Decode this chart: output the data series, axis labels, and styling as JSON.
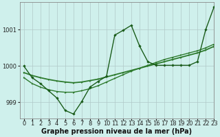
{
  "background_color": "#cff0ec",
  "grid_color": "#b0c8c8",
  "line_color_dark": "#1a5c1a",
  "line_color_mid": "#2d7a2d",
  "xlabel": "Graphe pression niveau de la mer (hPa)",
  "xlim": [
    -0.5,
    23
  ],
  "ylim": [
    998.55,
    1001.75
  ],
  "yticks": [
    999,
    1000,
    1001
  ],
  "xticks": [
    0,
    1,
    2,
    3,
    4,
    5,
    6,
    7,
    8,
    9,
    10,
    11,
    12,
    13,
    14,
    15,
    16,
    17,
    18,
    19,
    20,
    21,
    22,
    23
  ],
  "series_main_x": [
    0,
    1,
    2,
    3,
    4,
    5,
    6,
    7,
    8,
    9,
    10,
    11,
    12,
    13,
    14,
    15,
    16,
    17,
    18,
    19,
    20,
    21,
    22,
    23
  ],
  "series_main_y": [
    1000.0,
    999.68,
    999.52,
    999.32,
    999.12,
    998.78,
    998.68,
    999.02,
    999.42,
    999.58,
    999.72,
    1000.85,
    1000.98,
    1001.12,
    1000.55,
    1000.12,
    1000.02,
    1000.02,
    1000.02,
    1000.02,
    1000.02,
    1000.12,
    1001.0,
    1001.62
  ],
  "series_smooth1_x": [
    0,
    1,
    2,
    3,
    4,
    5,
    6,
    7,
    8,
    9,
    10,
    11,
    12,
    13,
    14,
    15,
    16,
    17,
    18,
    19,
    20,
    21,
    22,
    23
  ],
  "series_smooth1_y": [
    999.68,
    999.52,
    999.42,
    999.35,
    999.3,
    999.28,
    999.28,
    999.32,
    999.38,
    999.46,
    999.56,
    999.66,
    999.76,
    999.86,
    999.94,
    1000.02,
    1000.1,
    1000.18,
    1000.24,
    1000.3,
    1000.36,
    1000.42,
    1000.5,
    1000.6
  ],
  "series_smooth2_x": [
    0,
    1,
    2,
    3,
    4,
    5,
    6,
    7,
    8,
    9,
    10,
    11,
    12,
    13,
    14,
    15,
    16,
    17,
    18,
    19,
    20,
    21,
    22,
    23
  ],
  "series_smooth2_y": [
    999.82,
    999.74,
    999.68,
    999.63,
    999.59,
    999.56,
    999.54,
    999.56,
    999.6,
    999.64,
    999.7,
    999.76,
    999.82,
    999.88,
    999.94,
    1000.0,
    1000.06,
    1000.12,
    1000.18,
    1000.24,
    1000.3,
    1000.36,
    1000.44,
    1000.54
  ],
  "tick_fontsize": 6.0,
  "xlabel_fontsize": 7.0,
  "xlabel_fontweight": "bold"
}
